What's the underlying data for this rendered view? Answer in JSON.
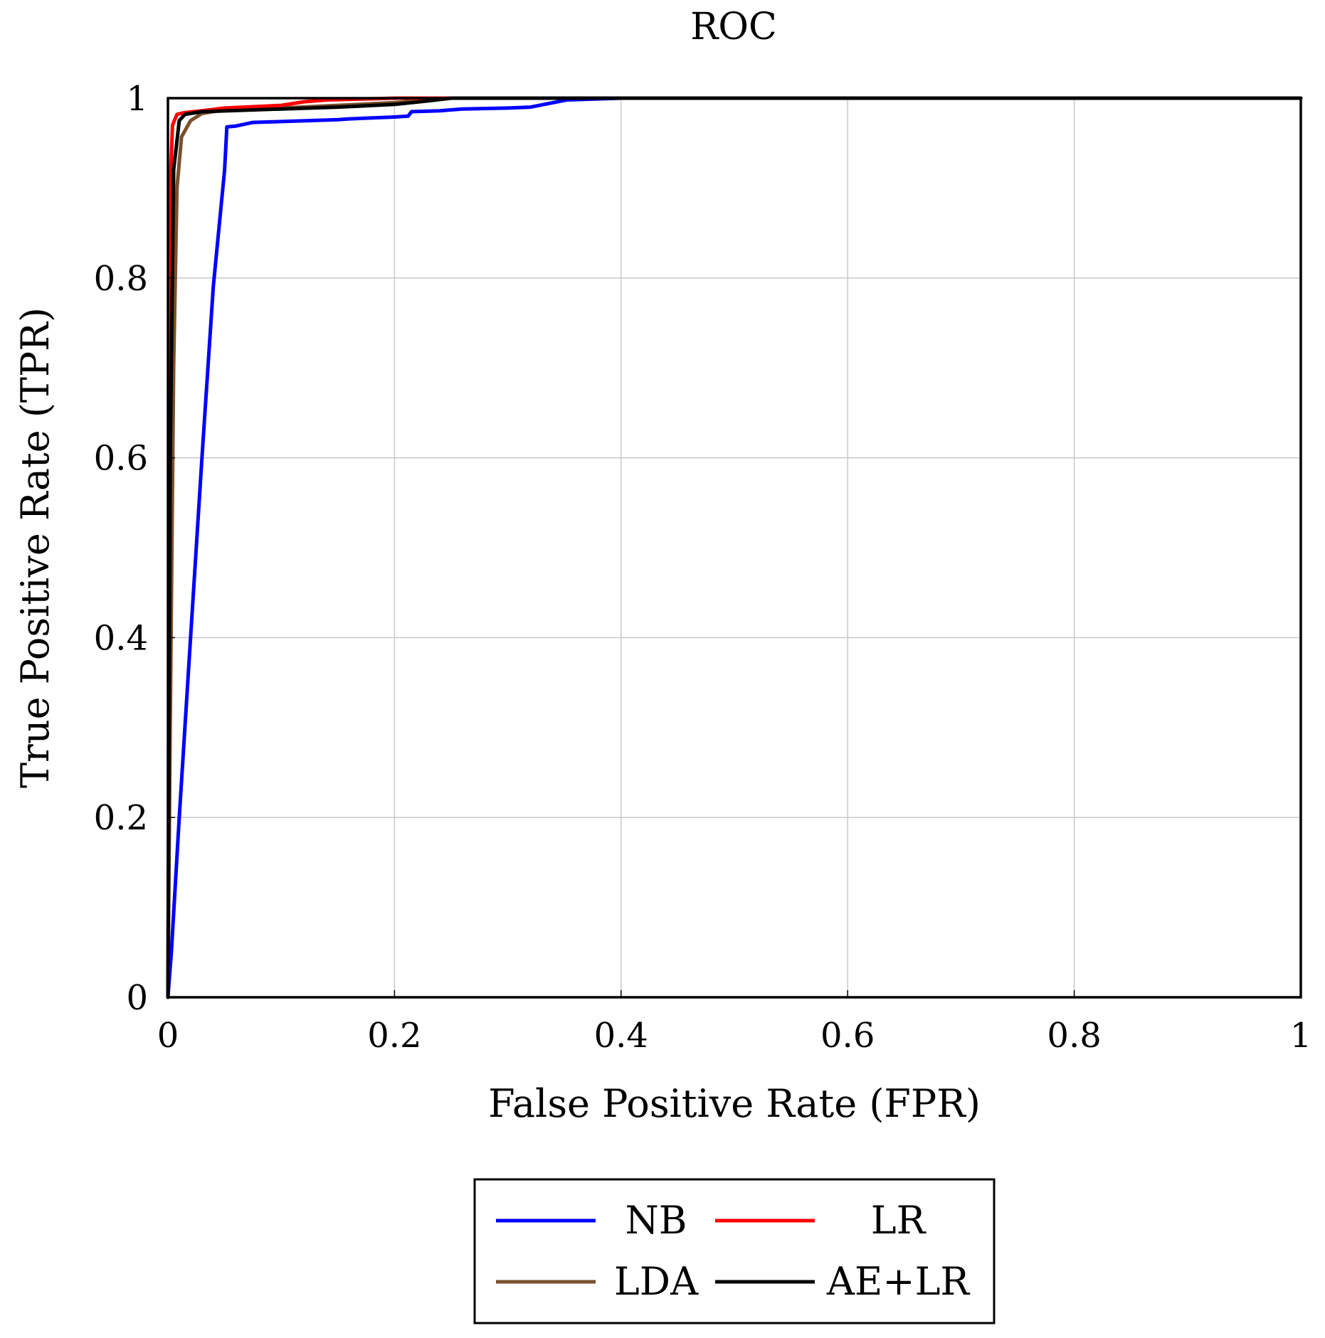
{
  "chart_data": {
    "type": "line",
    "title": "ROC",
    "xlabel": "False Positive Rate (FPR)",
    "ylabel": "True Positive Rate (TPR)",
    "xlim": [
      0,
      1
    ],
    "ylim": [
      0,
      1
    ],
    "xticks": [
      "0",
      "0.2",
      "0.4",
      "0.6",
      "0.8",
      "1"
    ],
    "yticks": [
      "0",
      "0.2",
      "0.4",
      "0.6",
      "0.8",
      "1"
    ],
    "grid": true,
    "legend_position": "bottom-center",
    "series": [
      {
        "name": "NB",
        "color": "#0000ff",
        "x": [
          0,
          0.003,
          0.01,
          0.02,
          0.03,
          0.04,
          0.05,
          0.052,
          0.06,
          0.075,
          0.1,
          0.15,
          0.16,
          0.2,
          0.212,
          0.215,
          0.24,
          0.26,
          0.3,
          0.32,
          0.34,
          0.352,
          0.4,
          1
        ],
        "y": [
          0,
          0.05,
          0.2,
          0.4,
          0.6,
          0.79,
          0.92,
          0.968,
          0.969,
          0.973,
          0.974,
          0.976,
          0.977,
          0.979,
          0.98,
          0.985,
          0.986,
          0.988,
          0.989,
          0.99,
          0.995,
          0.998,
          1.0,
          1.0
        ]
      },
      {
        "name": "LR",
        "color": "#ff0000",
        "x": [
          0,
          0.002,
          0.004,
          0.008,
          0.015,
          0.03,
          0.05,
          0.1,
          0.12,
          0.14,
          0.2,
          1
        ],
        "y": [
          0,
          0.9,
          0.97,
          0.982,
          0.984,
          0.986,
          0.989,
          0.992,
          0.996,
          0.998,
          1.0,
          1.0
        ]
      },
      {
        "name": "LDA",
        "color": "#7b4f2c",
        "x": [
          0,
          0.002,
          0.005,
          0.008,
          0.012,
          0.02,
          0.03,
          0.05,
          0.1,
          0.15,
          0.2,
          0.25,
          1
        ],
        "y": [
          0,
          0.3,
          0.7,
          0.9,
          0.957,
          0.975,
          0.983,
          0.987,
          0.989,
          0.992,
          0.995,
          1.0,
          1.0
        ]
      },
      {
        "name": "AE+LR",
        "color": "#000000",
        "x": [
          0,
          0.002,
          0.005,
          0.01,
          0.015,
          0.03,
          0.1,
          0.15,
          0.2,
          0.23,
          0.25,
          1
        ],
        "y": [
          0,
          0.6,
          0.92,
          0.975,
          0.982,
          0.985,
          0.988,
          0.99,
          0.993,
          0.997,
          1.0,
          1.0
        ]
      }
    ]
  }
}
